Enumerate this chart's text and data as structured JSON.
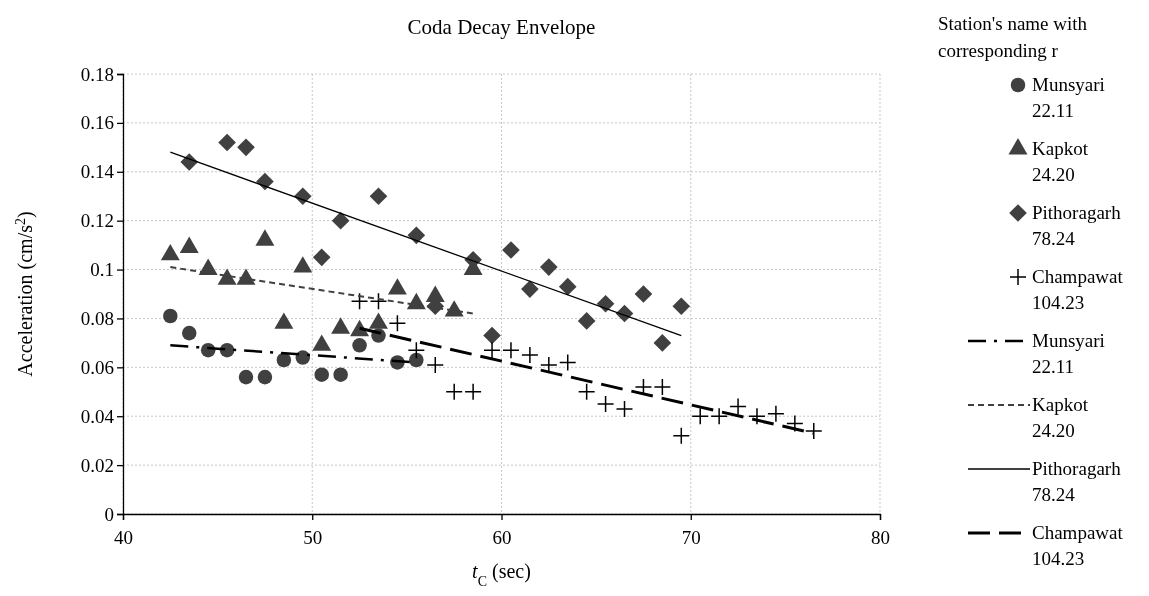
{
  "chart_data": {
    "type": "scatter",
    "title": "Coda Decay Envelope",
    "xlabel": "t$_{C}$ (sec)",
    "ylabel": "Acceleration  (cm/s$^{2}$)",
    "legend_title": "Station's name with corresponding r",
    "legend": "right",
    "grid": true,
    "xlim": [
      40,
      80
    ],
    "xticks": [
      40,
      50,
      60,
      70,
      80
    ],
    "ylim": [
      0,
      0.18
    ],
    "yticks": [
      0,
      0.02,
      0.04,
      0.06,
      0.08,
      {
        "value": 0.1,
        "label": "0.1"
      },
      0.12,
      0.14,
      0.16,
      0.18
    ],
    "series": [
      {
        "name": "Munsyari 22.11",
        "marker": "circle",
        "color": "#404040",
        "x": [
          42.5,
          43.5,
          44.5,
          45.5,
          46.5,
          47.5,
          48.5,
          49.5,
          50.5,
          51.5,
          52.5,
          53.5,
          54.5,
          55.5
        ],
        "values": [
          0.081,
          0.074,
          0.067,
          0.067,
          0.056,
          0.056,
          0.063,
          0.064,
          0.057,
          0.057,
          0.069,
          0.073,
          0.062,
          0.063
        ]
      },
      {
        "name": "Kapkot 24.20",
        "marker": "triangle",
        "color": "#404040",
        "x": [
          42.5,
          43.5,
          44.5,
          45.5,
          46.5,
          47.5,
          48.5,
          49.5,
          50.5,
          51.5,
          52.5,
          53.5,
          54.5,
          55.5,
          56.5,
          57.5,
          58.5
        ],
        "values": [
          0.106,
          0.109,
          0.1,
          0.096,
          0.096,
          0.112,
          0.078,
          0.101,
          0.069,
          0.076,
          0.075,
          0.078,
          0.092,
          0.086,
          0.089,
          0.083,
          0.1
        ]
      },
      {
        "name": "Pithoragarh 78.24",
        "marker": "diamond",
        "color": "#404040",
        "x": [
          43.5,
          45.5,
          46.5,
          47.5,
          49.5,
          50.5,
          51.5,
          53.5,
          55.5,
          56.5,
          58.5,
          59.5,
          60.5,
          61.5,
          62.5,
          63.5,
          64.5,
          65.5,
          66.5,
          67.5,
          68.5,
          69.5
        ],
        "values": [
          0.144,
          0.152,
          0.15,
          0.136,
          0.13,
          0.105,
          0.12,
          0.13,
          0.114,
          0.085,
          0.104,
          0.073,
          0.108,
          0.092,
          0.101,
          0.093,
          0.079,
          0.086,
          0.082,
          0.09,
          0.07,
          0.085
        ]
      },
      {
        "name": "Champawat 104.23",
        "marker": "cross",
        "color": "#000000",
        "x": [
          52.5,
          53.5,
          54.5,
          55.5,
          56.5,
          57.5,
          58.5,
          59.5,
          60.5,
          61.5,
          62.5,
          63.5,
          64.5,
          65.5,
          66.5,
          67.5,
          68.5,
          69.5,
          70.5,
          71.5,
          72.5,
          73.5,
          74.5,
          75.5,
          76.5
        ],
        "values": [
          0.087,
          0.087,
          0.078,
          0.067,
          0.061,
          0.05,
          0.05,
          0.067,
          0.067,
          0.065,
          0.061,
          0.062,
          0.05,
          0.045,
          0.043,
          0.052,
          0.052,
          0.032,
          0.04,
          0.04,
          0.044,
          0.04,
          0.041,
          0.037,
          0.034
        ]
      },
      {
        "name": "Munsyari 22.11",
        "type": "line",
        "line_style": "dashdot",
        "color": "#000000",
        "x": [
          42.5,
          55.5
        ],
        "values": [
          0.069,
          0.062
        ]
      },
      {
        "name": "Kapkot 24.20",
        "type": "line",
        "line_style": "dotted",
        "color": "#404040",
        "x": [
          42.5,
          58.5
        ],
        "values": [
          0.101,
          0.082
        ]
      },
      {
        "name": "Pithoragarh 78.24",
        "type": "line",
        "line_style": "solid",
        "color": "#000000",
        "x": [
          42.5,
          69.5
        ],
        "values": [
          0.148,
          0.073
        ]
      },
      {
        "name": "Champawat 104.23",
        "type": "line",
        "line_style": "dashed",
        "color": "#000000",
        "x": [
          52.5,
          76.5
        ],
        "values": [
          0.076,
          0.033
        ]
      }
    ]
  }
}
